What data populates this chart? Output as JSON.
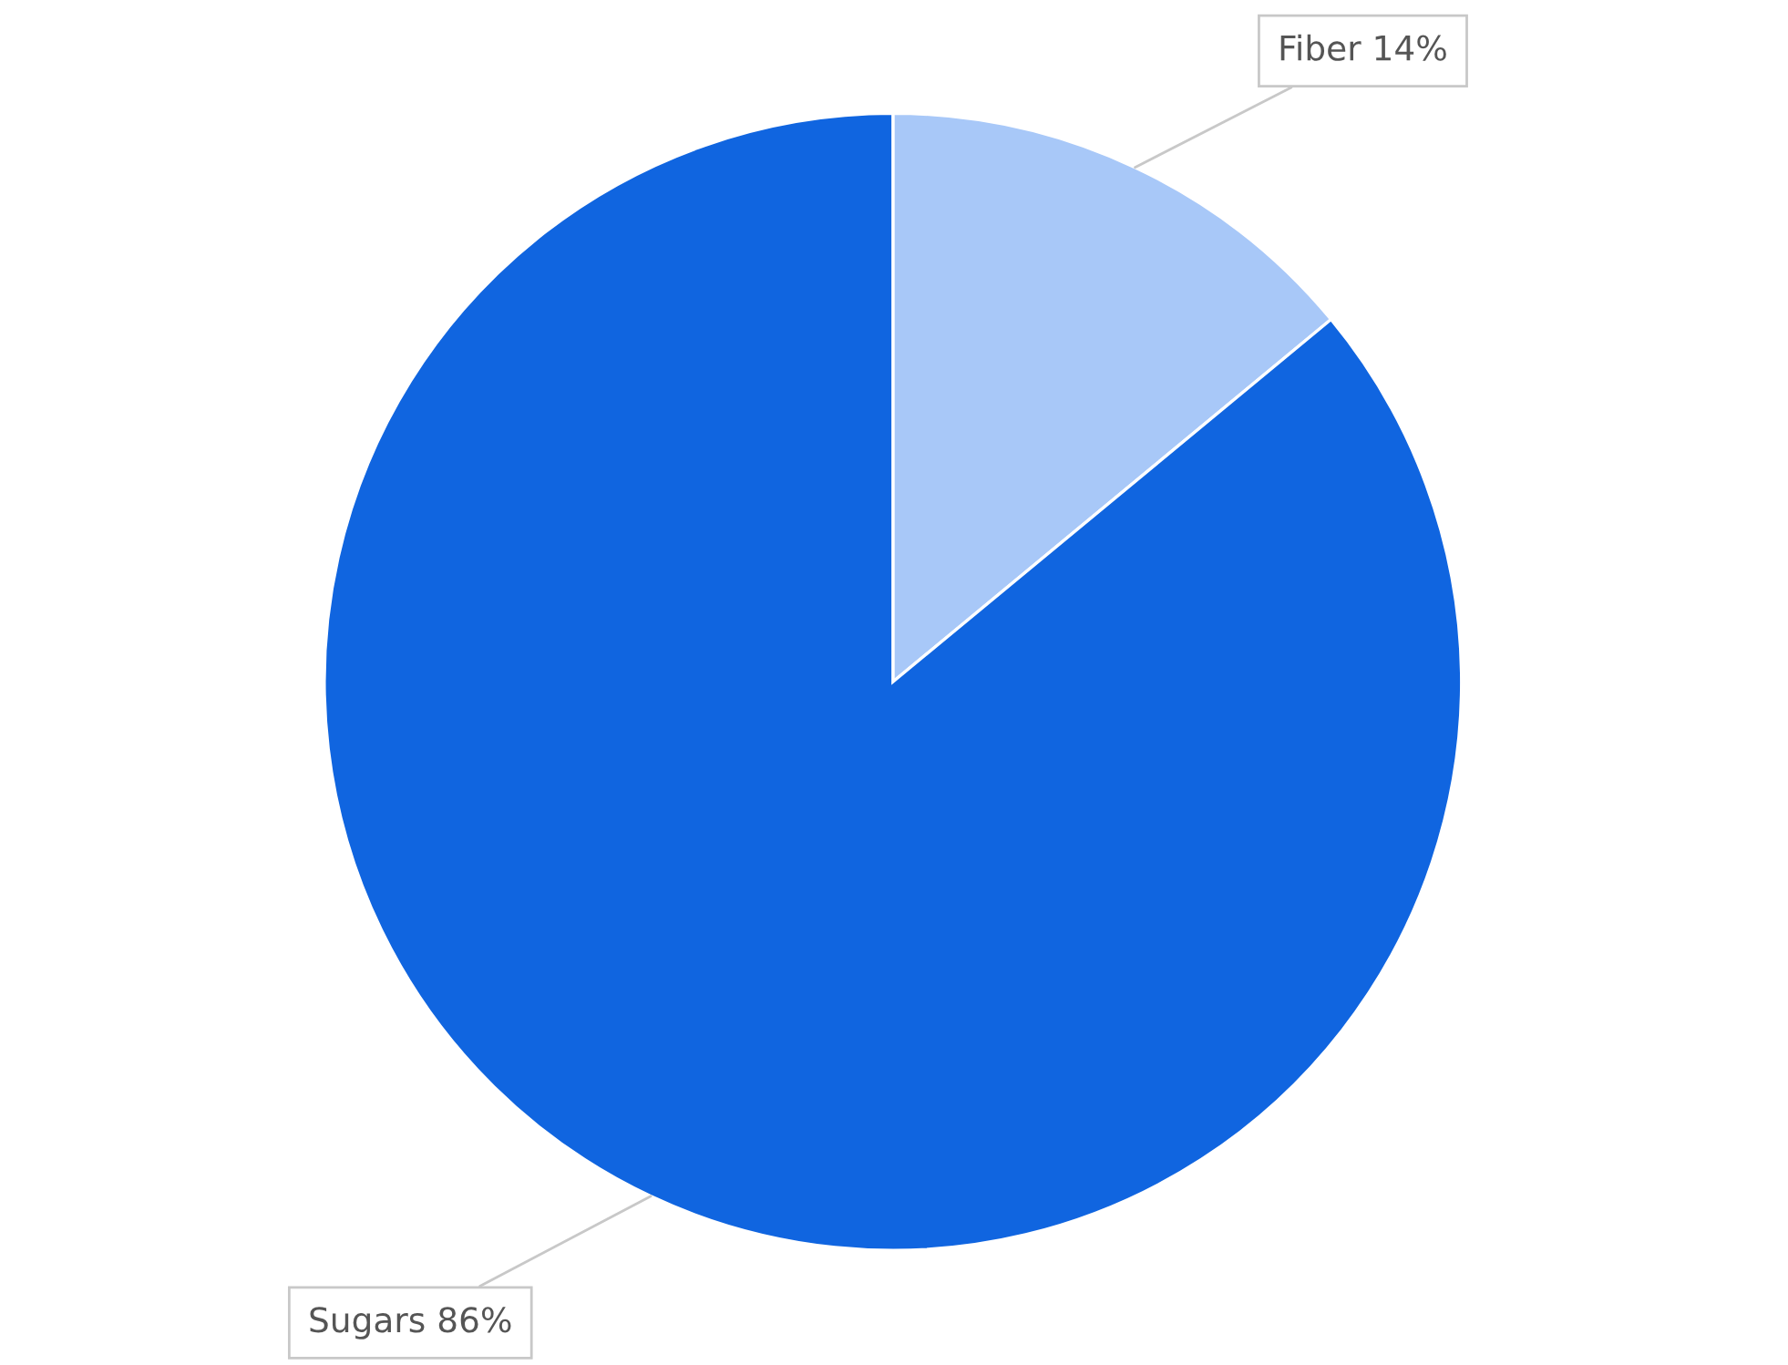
{
  "chart_data": {
    "type": "pie",
    "categories": [
      "Fiber",
      "Sugars"
    ],
    "values": [
      14,
      86
    ],
    "value_labels": [
      "14%",
      "86%"
    ],
    "colors": [
      "#a8c8f8",
      "#1065e0"
    ],
    "data_labels": true,
    "legend": false
  }
}
